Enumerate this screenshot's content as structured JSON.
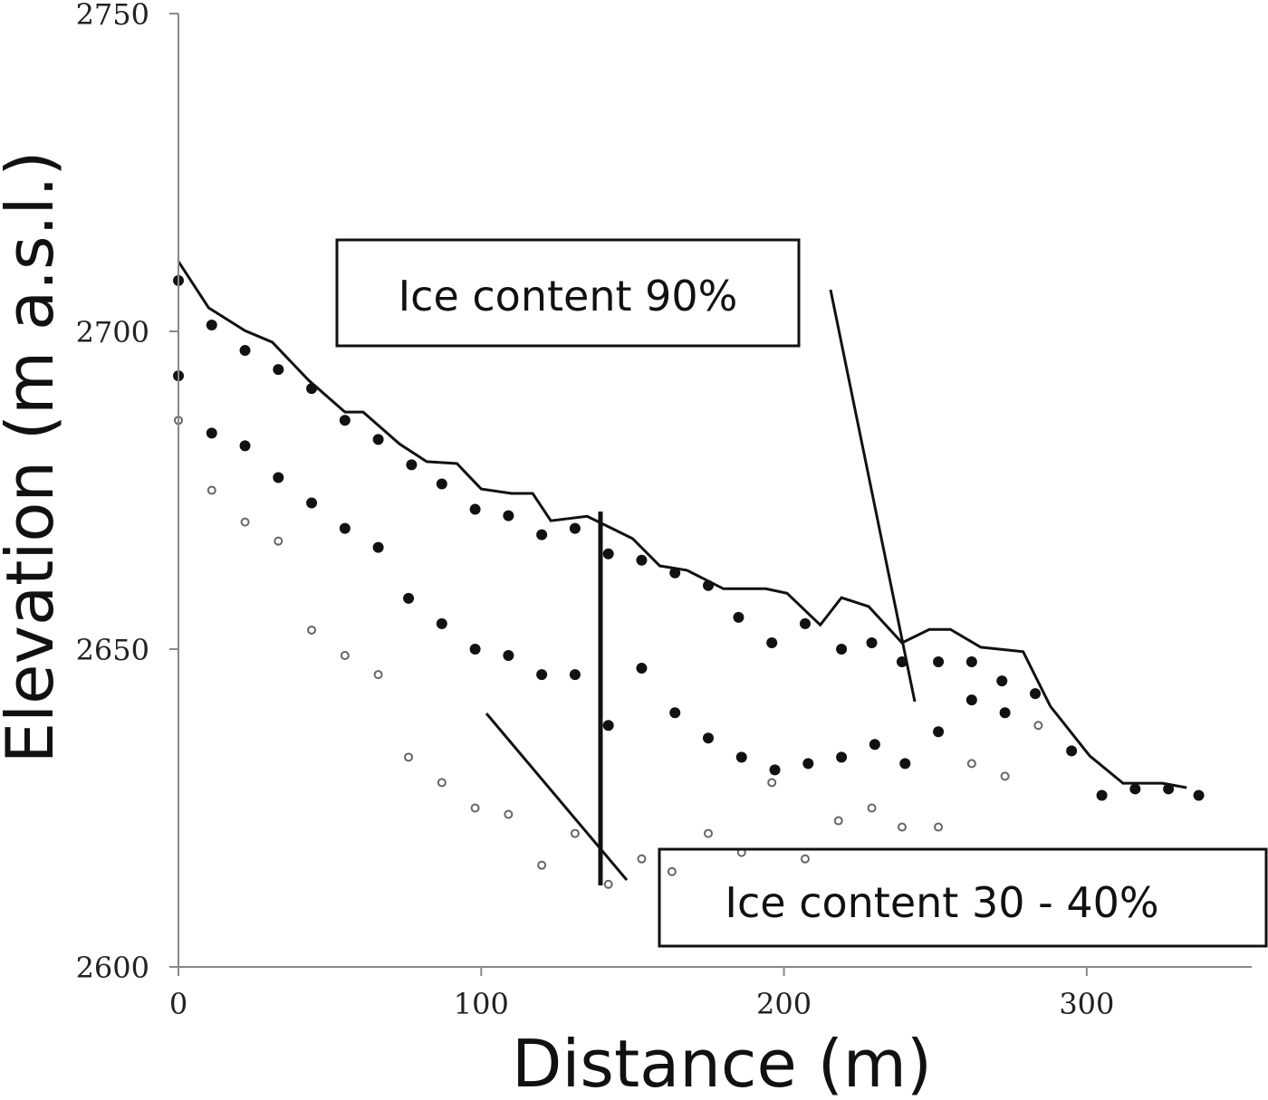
{
  "chart_data": {
    "type": "scatter",
    "xlabel": "Distance (m)",
    "ylabel": "Elevation (m a.s.l.)",
    "xlim": [
      0,
      350
    ],
    "ylim": [
      2600,
      2750
    ],
    "xticks": [
      0,
      100,
      200,
      300
    ],
    "yticks": [
      2600,
      2650,
      2700,
      2750
    ],
    "annotations": [
      "Ice content 90%",
      "Ice content 30 - 40%"
    ],
    "series": [
      {
        "marker": "line",
        "color": "#111111",
        "x": [
          0,
          10,
          22,
          31,
          43,
          55,
          61,
          73,
          82,
          92,
          100,
          110,
          117,
          123,
          135,
          144,
          150,
          159,
          168,
          180,
          194,
          201,
          212,
          219,
          228,
          239,
          248,
          255,
          265,
          279,
          288,
          301,
          312,
          325,
          333
        ],
        "values": [
          2711,
          2703.7,
          2700.1,
          2698.3,
          2692.3,
          2687.3,
          2687.3,
          2682.3,
          2679.5,
          2679.2,
          2675.2,
          2674.5,
          2674.5,
          2670.2,
          2670.9,
          2668.8,
          2667.4,
          2663.1,
          2662.4,
          2659.5,
          2659.5,
          2658.8,
          2653.8,
          2658.1,
          2656.7,
          2651,
          2653.1,
          2653.1,
          2650.3,
          2649.6,
          2641,
          2633.2,
          2628.9,
          2628.9,
          2628.2
        ]
      },
      {
        "marker": "dot",
        "color": "#111111",
        "x": [
          0,
          11,
          22,
          33,
          44,
          55,
          66,
          77,
          87,
          98,
          109,
          120,
          131,
          142,
          153,
          164,
          175,
          185,
          196,
          207,
          219,
          229,
          239,
          251,
          262,
          272,
          283,
          295,
          305,
          316,
          327,
          337
        ],
        "values": [
          2708,
          2701,
          2697,
          2694,
          2691,
          2686,
          2683,
          2679,
          2676,
          2672,
          2671,
          2668,
          2669,
          2665,
          2664,
          2662,
          2660,
          2655,
          2651,
          2654,
          2650,
          2651,
          2648,
          2648,
          2648,
          2645,
          2643,
          2634,
          2627,
          2628,
          2628,
          2627
        ]
      },
      {
        "marker": "dot",
        "color": "#111111",
        "x": [
          0,
          11,
          22,
          33,
          44,
          55,
          66,
          76,
          87,
          98,
          109,
          120,
          131,
          142,
          153,
          164,
          175,
          186,
          197,
          208,
          219,
          230,
          240,
          251,
          262,
          273
        ],
        "values": [
          2693,
          2684,
          2682,
          2677,
          2673,
          2669,
          2666,
          2658,
          2654,
          2650,
          2649,
          2646,
          2646,
          2638,
          2647,
          2640,
          2636,
          2633,
          2631,
          2632,
          2633,
          2635,
          2632,
          2637,
          2642,
          2640
        ]
      },
      {
        "marker": "cross",
        "color": "#666666",
        "x": [
          0,
          11,
          22,
          33,
          44,
          55,
          66,
          76,
          87,
          98,
          109,
          120,
          131,
          142,
          153,
          163,
          175,
          186,
          196,
          207,
          218,
          229,
          239,
          251,
          262,
          273,
          284
        ],
        "values": [
          2686,
          2675,
          2670,
          2667,
          2653,
          2649,
          2646,
          2633,
          2629,
          2625,
          2624,
          2616,
          2621,
          2613,
          2617,
          2615,
          2621,
          2618,
          2629,
          2617,
          2623,
          2625,
          2622,
          2622,
          2632,
          2630,
          2638
        ]
      }
    ]
  }
}
